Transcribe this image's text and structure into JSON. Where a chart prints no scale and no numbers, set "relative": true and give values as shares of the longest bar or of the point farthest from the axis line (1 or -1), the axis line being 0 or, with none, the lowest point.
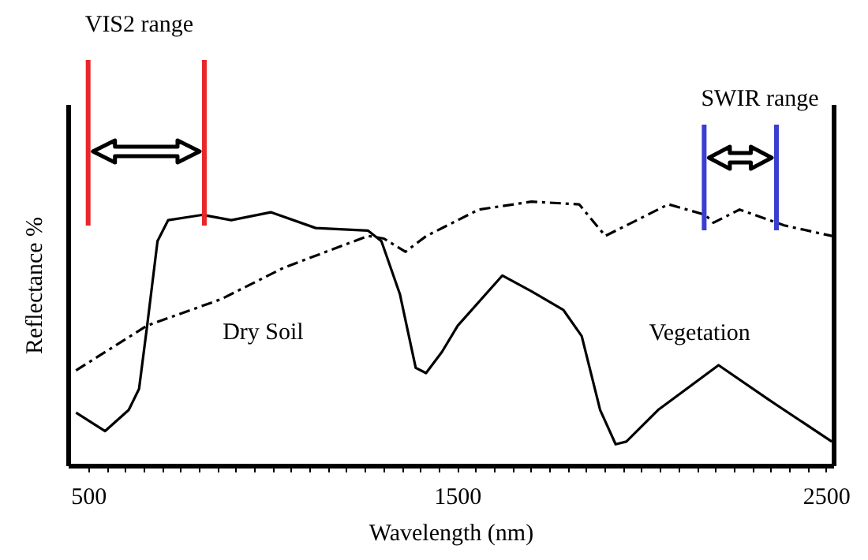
{
  "chart_data": {
    "type": "line",
    "relative": true,
    "xlabel": "Wavelength (nm)",
    "ylabel": "Reflectance %",
    "xlim": [
      445,
      2520
    ],
    "xticks": [
      500,
      {
        "value": 550,
        "label": null
      },
      {
        "value": 600,
        "label": null
      },
      {
        "value": 650,
        "label": null
      },
      {
        "value": 700,
        "label": null
      },
      {
        "value": 750,
        "label": null
      },
      {
        "value": 800,
        "label": null
      },
      {
        "value": 850,
        "label": null
      },
      {
        "value": 900,
        "label": null
      },
      {
        "value": 950,
        "label": null
      },
      {
        "value": 1000,
        "label": null
      },
      {
        "value": 1050,
        "label": null
      },
      {
        "value": 1100,
        "label": null
      },
      {
        "value": 1150,
        "label": null
      },
      {
        "value": 1200,
        "label": null
      },
      {
        "value": 1250,
        "label": null
      },
      {
        "value": 1300,
        "label": null
      },
      {
        "value": 1350,
        "label": null
      },
      {
        "value": 1400,
        "label": null
      },
      {
        "value": 1450,
        "label": null
      },
      1500,
      {
        "value": 1550,
        "label": null
      },
      {
        "value": 1600,
        "label": null
      },
      {
        "value": 1650,
        "label": null
      },
      {
        "value": 1700,
        "label": null
      },
      {
        "value": 1750,
        "label": null
      },
      {
        "value": 1800,
        "label": null
      },
      {
        "value": 1850,
        "label": null
      },
      {
        "value": 1900,
        "label": null
      },
      {
        "value": 1950,
        "label": null
      },
      {
        "value": 2000,
        "label": null
      },
      {
        "value": 2050,
        "label": null
      },
      {
        "value": 2100,
        "label": null
      },
      {
        "value": 2150,
        "label": null
      },
      {
        "value": 2200,
        "label": null
      },
      {
        "value": 2250,
        "label": null
      },
      {
        "value": 2300,
        "label": null
      },
      {
        "value": 2350,
        "label": null
      },
      {
        "value": 2400,
        "label": null
      },
      {
        "value": 2450,
        "label": null
      },
      2500
    ],
    "series": [
      {
        "color": "#000000",
        "line_style": "solid",
        "x": [
          467,
          546,
          610,
          638,
          660,
          688,
          717,
          810,
          888,
          995,
          1117,
          1259,
          1295,
          1345,
          1388,
          1416,
          1459,
          1502,
          1623,
          1702,
          1788,
          1838,
          1888,
          1930,
          1959,
          2045,
          2209,
          2344,
          2516
        ],
        "values": [
          0.2,
          0.13,
          0.21,
          0.29,
          0.53,
          0.85,
          0.93,
          0.95,
          0.93,
          0.96,
          0.9,
          0.89,
          0.85,
          0.65,
          0.37,
          0.35,
          0.43,
          0.53,
          0.72,
          0.66,
          0.59,
          0.49,
          0.21,
          0.08,
          0.09,
          0.21,
          0.38,
          0.25,
          0.09
        ]
      },
      {
        "color": "#000000",
        "line_style": "dashed",
        "x": [
          467,
          660,
          860,
          1031,
          1259,
          1302,
          1360,
          1417,
          1559,
          1702,
          1831,
          1902,
          1959,
          2073,
          2173,
          2195,
          2266,
          2387,
          2516
        ],
        "values": [
          0.36,
          0.53,
          0.63,
          0.75,
          0.87,
          0.86,
          0.81,
          0.87,
          0.97,
          1.0,
          0.99,
          0.87,
          0.91,
          0.99,
          0.95,
          0.92,
          0.97,
          0.91,
          0.87
        ]
      }
    ],
    "ref_lines": [
      {
        "axis": "x",
        "value": 500,
        "label": "VIS2 range",
        "color": "#e8262b"
      },
      {
        "axis": "x",
        "value": 815,
        "color": "#e8262b"
      },
      {
        "axis": "x",
        "value": 2170,
        "label": "SWIR range",
        "color": "#3b3fd0"
      },
      {
        "axis": "x",
        "value": 2366,
        "color": "#3b3fd0"
      }
    ],
    "annotations": [
      "Dry Soil",
      "Vegetation"
    ]
  }
}
